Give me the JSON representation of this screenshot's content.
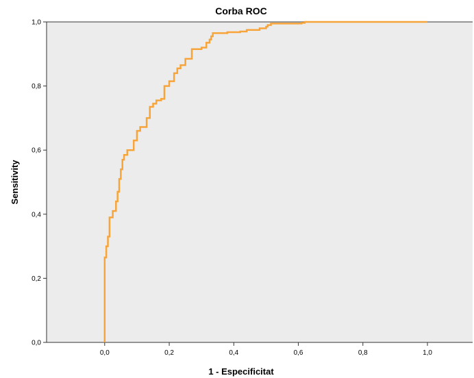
{
  "chart_data": {
    "type": "line",
    "title": "Corba ROC",
    "xlabel": "1 - Especificitat",
    "ylabel": "Sensitivity",
    "xlim": [
      -0.18,
      1.14
    ],
    "ylim": [
      0,
      1
    ],
    "xticks": [
      0.0,
      0.2,
      0.4,
      0.6,
      0.8,
      1.0
    ],
    "xtick_labels": [
      "0,0",
      "0,2",
      "0,4",
      "0,6",
      "0,8",
      "1,0"
    ],
    "yticks": [
      0.0,
      0.2,
      0.4,
      0.6,
      0.8,
      1.0
    ],
    "ytick_labels": [
      "0,0",
      "0,2",
      "0,4",
      "0,6",
      "0,8",
      "1,0"
    ],
    "grid": false,
    "plot_background": "#ececec",
    "series": [
      {
        "color": "#f7a43a",
        "x": [
          0.0,
          0.0,
          0.005,
          0.005,
          0.01,
          0.01,
          0.015,
          0.015,
          0.025,
          0.025,
          0.035,
          0.035,
          0.04,
          0.04,
          0.045,
          0.045,
          0.05,
          0.05,
          0.055,
          0.055,
          0.06,
          0.06,
          0.07,
          0.07,
          0.09,
          0.09,
          0.1,
          0.1,
          0.11,
          0.11,
          0.13,
          0.13,
          0.14,
          0.14,
          0.15,
          0.15,
          0.16,
          0.16,
          0.175,
          0.175,
          0.185,
          0.185,
          0.2,
          0.2,
          0.215,
          0.215,
          0.225,
          0.225,
          0.235,
          0.235,
          0.25,
          0.25,
          0.27,
          0.27,
          0.3,
          0.3,
          0.315,
          0.315,
          0.325,
          0.325,
          0.33,
          0.33,
          0.335,
          0.335,
          0.38,
          0.38,
          0.42,
          0.42,
          0.44,
          0.44,
          0.48,
          0.48,
          0.5,
          0.5,
          0.505,
          0.505,
          0.515,
          0.515,
          0.61,
          0.61,
          0.62,
          0.62,
          0.99,
          1.0
        ],
        "y": [
          0.0,
          0.265,
          0.265,
          0.3,
          0.3,
          0.33,
          0.33,
          0.39,
          0.39,
          0.41,
          0.41,
          0.44,
          0.44,
          0.47,
          0.47,
          0.51,
          0.51,
          0.54,
          0.54,
          0.57,
          0.57,
          0.585,
          0.585,
          0.6,
          0.6,
          0.63,
          0.63,
          0.66,
          0.66,
          0.672,
          0.672,
          0.7,
          0.7,
          0.735,
          0.735,
          0.745,
          0.745,
          0.755,
          0.755,
          0.76,
          0.76,
          0.8,
          0.8,
          0.815,
          0.815,
          0.84,
          0.84,
          0.855,
          0.855,
          0.865,
          0.865,
          0.885,
          0.885,
          0.915,
          0.915,
          0.92,
          0.92,
          0.935,
          0.935,
          0.945,
          0.945,
          0.955,
          0.955,
          0.965,
          0.965,
          0.968,
          0.968,
          0.97,
          0.97,
          0.975,
          0.975,
          0.98,
          0.98,
          0.985,
          0.985,
          0.99,
          0.99,
          0.995,
          0.995,
          0.997,
          0.997,
          1.0,
          1.0,
          1.0
        ]
      }
    ]
  }
}
